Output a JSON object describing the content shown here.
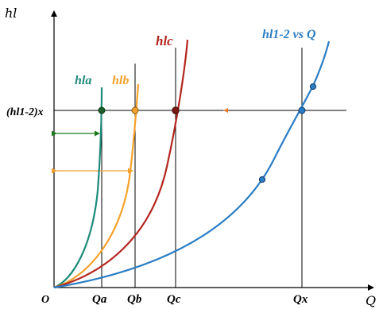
{
  "axes": {
    "y_label": "hl",
    "x_label": "Q",
    "origin_label": "O"
  },
  "head_label": "(hl1-2)x",
  "curves": [
    {
      "id": "a",
      "label": "hla",
      "color": "#1d8a7a"
    },
    {
      "id": "b",
      "label": "hlb",
      "color": "#f5a12a"
    },
    {
      "id": "c",
      "label": "hlc",
      "color": "#b3251e"
    },
    {
      "id": "sys",
      "label": "hl1-2 vs Q",
      "color": "#2a7dc4"
    }
  ],
  "flow_labels": {
    "a": "Qa",
    "b": "Qb",
    "c": "Qc",
    "x": "Qx"
  },
  "colors": {
    "axis": "#000000",
    "arrow_a": "#1a7a1a",
    "arrow_b": "#f5a12a",
    "marker_dark": "#1f5f2a"
  }
}
